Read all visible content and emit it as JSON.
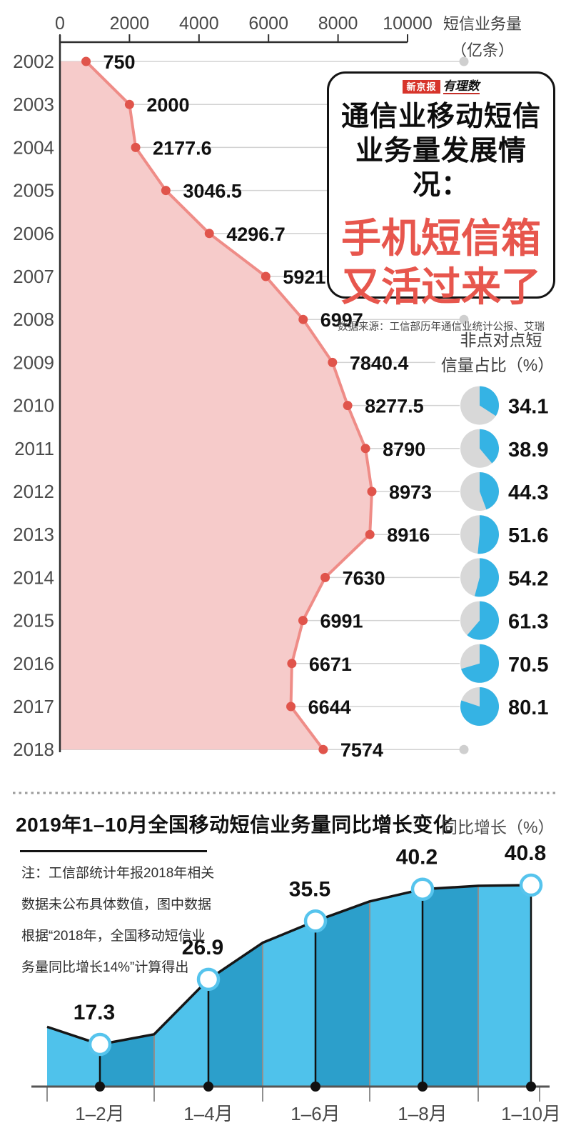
{
  "info_box": {
    "logo_brand": "新京报",
    "logo_sub": "有理数",
    "title_line1": "通信业移动短信",
    "title_line2": "业务量发展情况：",
    "highlight_line1": "手机短信箱",
    "highlight_line2": "又活过来了",
    "source": "数据来源：工信部历年通信业统计公报、艾瑞"
  },
  "section2": {
    "title": "2019年1–10月全国移动短信业务量同比增长变化",
    "unit_label": "同比增长（%）",
    "note_lines": [
      "注：工信部统计年报2018年相关",
      "数据未公布具体数值，图中数据",
      "根据“2018年，全国移动短信业",
      "务量同比增长14%”计算得出"
    ]
  },
  "chart_data": [
    {
      "type": "area",
      "orientation": "horizontal-bars-by-year",
      "axis_label_lines": [
        "短信业务量",
        "（亿条）"
      ],
      "axis_ticks": [
        0,
        2000,
        4000,
        6000,
        8000,
        10000
      ],
      "axis_range": [
        0,
        10000
      ],
      "categories": [
        2002,
        2003,
        2004,
        2005,
        2006,
        2007,
        2008,
        2009,
        2010,
        2011,
        2012,
        2013,
        2014,
        2015,
        2016,
        2017,
        2018
      ],
      "values": [
        750,
        2000,
        2177.6,
        3046.5,
        4296.7,
        5921,
        6997,
        7840.4,
        8277.5,
        8790,
        8973,
        8916,
        7630,
        6991,
        6671,
        6644,
        7574
      ],
      "grid": true,
      "end_marker_years": [
        2002,
        2008,
        2018
      ],
      "pie_series": {
        "label_lines": [
          "非点对点短",
          "信量占比（%）"
        ],
        "label": "非点对点短信量占比（%）",
        "years": [
          2010,
          2011,
          2012,
          2013,
          2014,
          2015,
          2016,
          2017
        ],
        "values": [
          34.1,
          38.9,
          44.3,
          51.6,
          54.2,
          61.3,
          70.5,
          80.1
        ]
      },
      "colors": {
        "area_fill": "#F6CBCA",
        "area_line": "#EF8C87",
        "point": "#E0544B",
        "grid_line": "#d2d2d2",
        "end_marker": "#cfcfcf",
        "axis": "#2f2f2f",
        "pie_slice": "#35B3E4",
        "pie_rest": "#D8D8D8"
      }
    },
    {
      "type": "area",
      "title": "2019年1–10月全国移动短信业务量同比增长变化",
      "ylabel": "同比增长（%）",
      "categories": [
        "1–2月",
        "1–4月",
        "1–6月",
        "1–8月",
        "1–10月"
      ],
      "values": [
        17.3,
        26.9,
        35.5,
        40.2,
        40.8
      ],
      "estimated_profile": {
        "left_edge": 19.9,
        "between_points": [
          18.8,
          32.3,
          38.4,
          40.7
        ]
      },
      "grid": false,
      "legend_position": "none",
      "colors": {
        "band_light": "#4FC2EB",
        "band_dark": "#2C9FCB",
        "outline": "#161616",
        "marker_ring": "#56C4ED",
        "axis": "#555555",
        "boundary": "#8f8f8f"
      }
    }
  ]
}
